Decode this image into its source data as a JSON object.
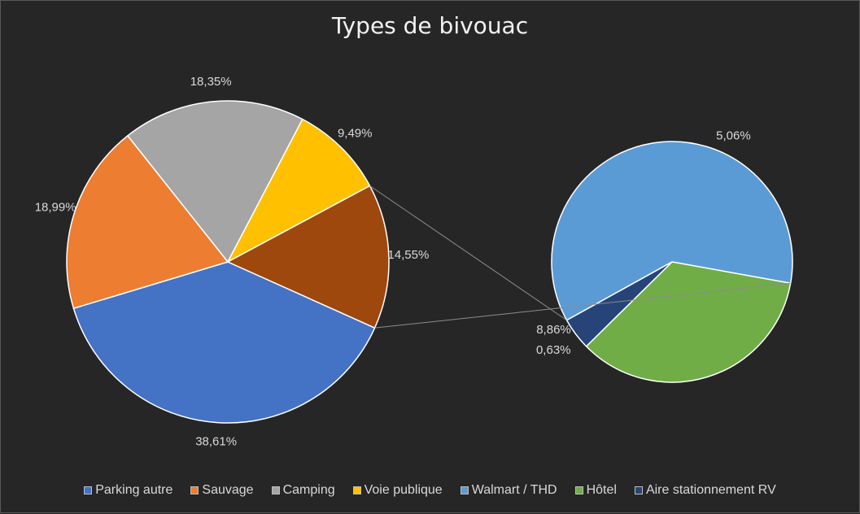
{
  "chart_data": {
    "type": "pie",
    "subtype": "pie-of-pie",
    "title": "Types de bivouac",
    "slices": [
      {
        "name": "Parking autre",
        "value": 38.61,
        "label": "38,61%",
        "color": "#4472c4",
        "group": "main"
      },
      {
        "name": "Sauvage",
        "value": 18.99,
        "label": "18,99%",
        "color": "#ed7d31",
        "group": "main"
      },
      {
        "name": "Camping",
        "value": 18.35,
        "label": "18,35%",
        "color": "#a5a5a5",
        "group": "main"
      },
      {
        "name": "Voie publique",
        "value": 9.49,
        "label": "9,49%",
        "color": "#ffc000",
        "group": "main"
      },
      {
        "name": "Walmart / THD",
        "value": 8.86,
        "label": "8,86%",
        "color": "#5b9bd5",
        "group": "secondary"
      },
      {
        "name": "Hôtel",
        "value": 5.06,
        "label": "5,06%",
        "color": "#70ad47",
        "group": "secondary"
      },
      {
        "name": "Aire stationnement RV",
        "value": 0.63,
        "label": "0,63%",
        "color": "#264478",
        "group": "secondary"
      }
    ],
    "other": {
      "value": 14.55,
      "label": "14,55%",
      "color": "#9e480e"
    },
    "legend_position": "bottom"
  }
}
